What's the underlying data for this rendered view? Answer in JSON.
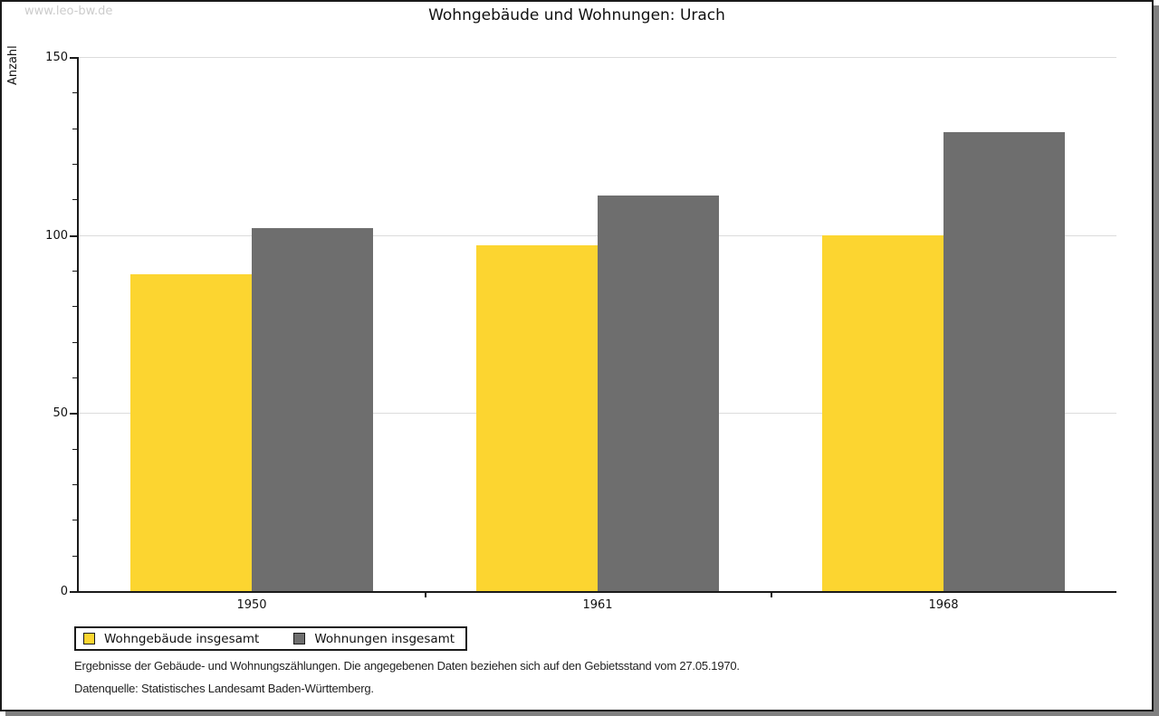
{
  "watermark": "www.leo-bw.de",
  "title": "Wohngebäude und Wohnungen: Urach",
  "chart_data": {
    "type": "bar",
    "title": "Wohngebäude und Wohnungen: Urach",
    "categories": [
      "1950",
      "1961",
      "1968"
    ],
    "series": [
      {
        "name": "Wohngebäude insgesamt",
        "color": "#FCD530",
        "values": [
          89,
          97,
          100
        ]
      },
      {
        "name": "Wohnungen insgesamt",
        "color": "#6E6E6E",
        "values": [
          102,
          111,
          129
        ]
      }
    ],
    "xlabel": "",
    "ylabel": "Anzahl",
    "ylim": [
      0,
      150
    ],
    "yticks": [
      0,
      50,
      100,
      150
    ],
    "minor_tick_step": 10,
    "grid": true,
    "legend_position": "bottom-left",
    "gridline_color": "#dcdcdc"
  },
  "footer": {
    "line1": "Ergebnisse der Gebäude- und Wohnungszählungen. Die angegebenen Daten beziehen sich auf den Gebietsstand vom 27.05.1970.",
    "line2": "Datenquelle: Statistisches Landesamt Baden-Württemberg."
  }
}
